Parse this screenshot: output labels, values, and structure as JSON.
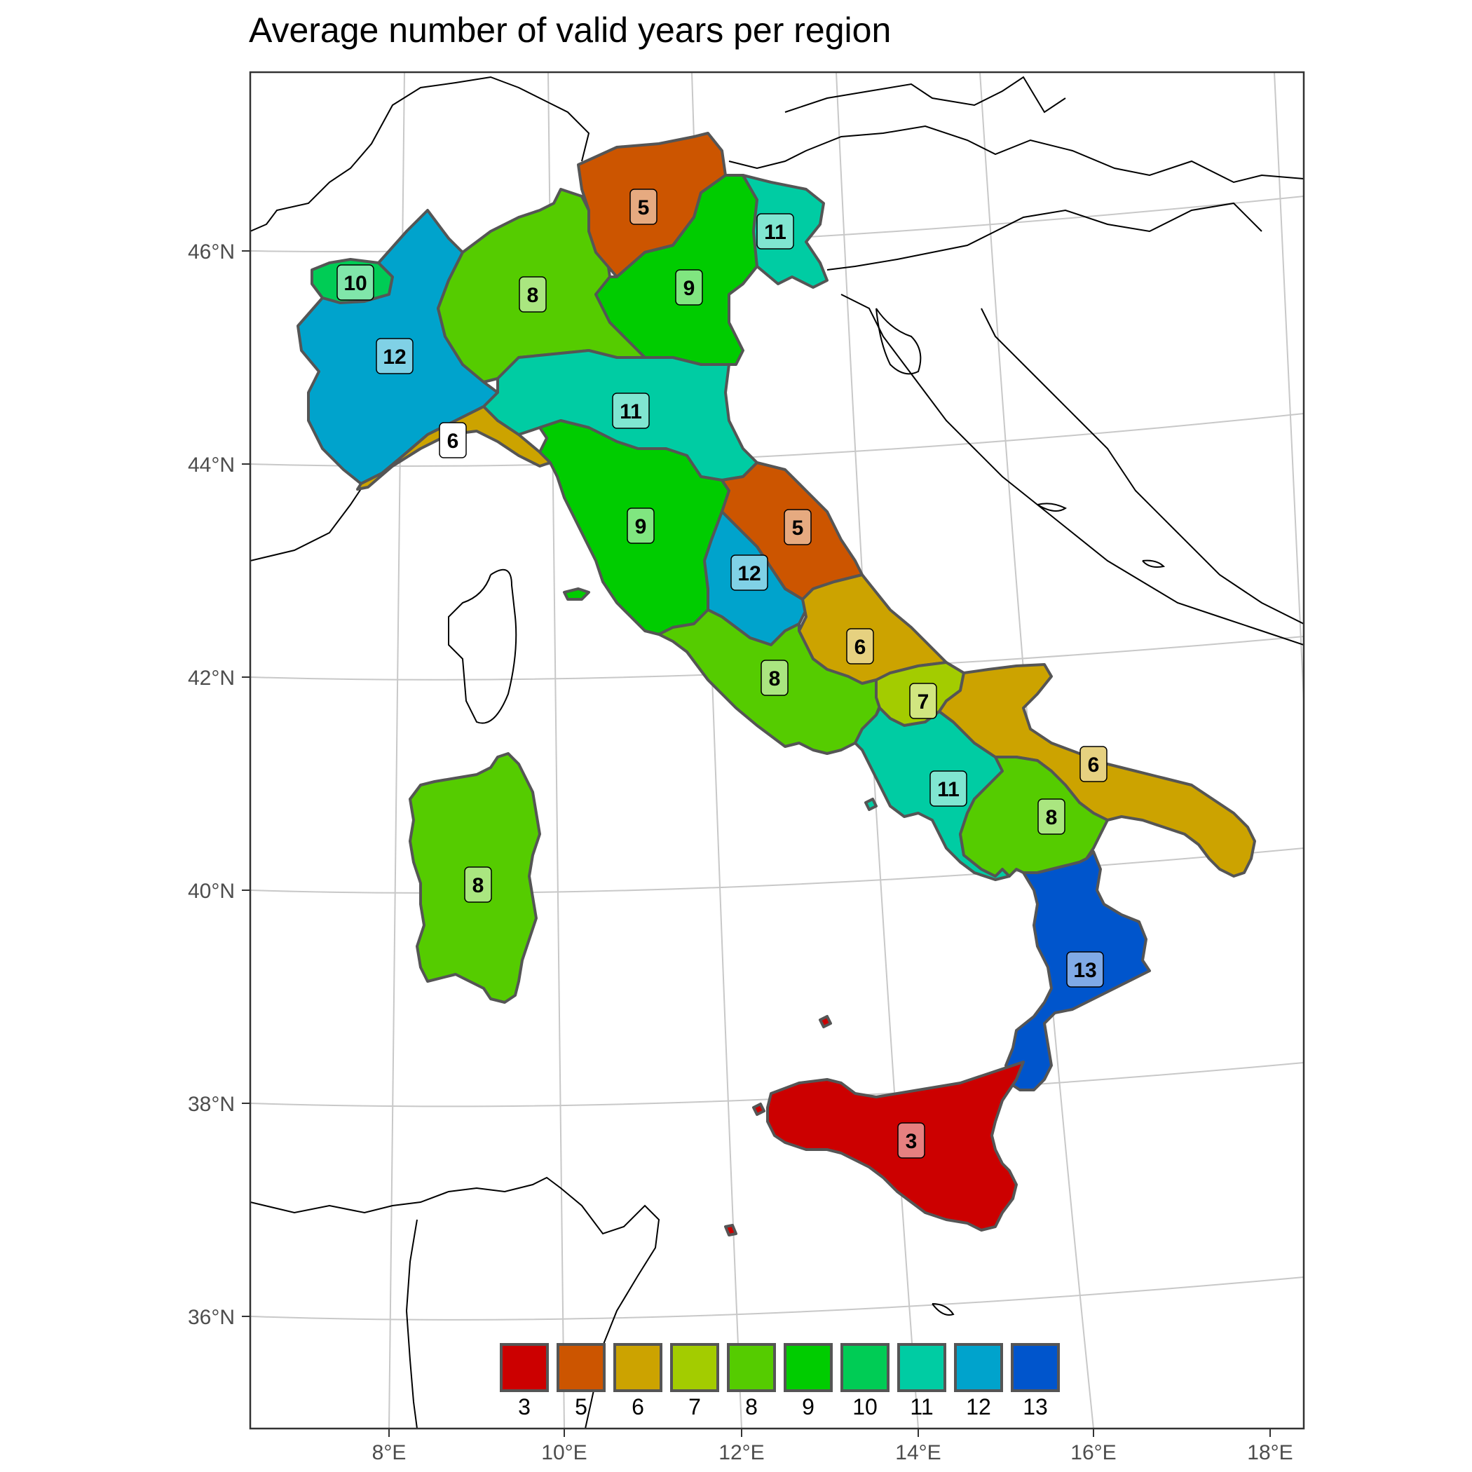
{
  "title": "Average number of valid years per region",
  "axes": {
    "lon_ticks": [
      "8°E",
      "10°E",
      "12°E",
      "14°E",
      "16°E",
      "18°E"
    ],
    "lat_ticks": [
      "46°N",
      "44°N",
      "42°N",
      "40°N",
      "38°N",
      "36°N"
    ]
  },
  "legend": {
    "placement": "bottom-center",
    "items": [
      {
        "label": "3",
        "color": "#cc0000"
      },
      {
        "label": "5",
        "color": "#cc5500"
      },
      {
        "label": "6",
        "color": "#cca300"
      },
      {
        "label": "7",
        "color": "#a3cc00"
      },
      {
        "label": "8",
        "color": "#55cc00"
      },
      {
        "label": "9",
        "color": "#00cc00"
      },
      {
        "label": "10",
        "color": "#00cc55"
      },
      {
        "label": "11",
        "color": "#00cca3"
      },
      {
        "label": "12",
        "color": "#00a3cc"
      },
      {
        "label": "13",
        "color": "#0055cc"
      }
    ]
  },
  "regions": [
    {
      "name": "Valle d'Aosta",
      "value": "10"
    },
    {
      "name": "Piemonte",
      "value": "12"
    },
    {
      "name": "Lombardia",
      "value": "8"
    },
    {
      "name": "Trentino-Alto Adige",
      "value": "5"
    },
    {
      "name": "Veneto",
      "value": "9"
    },
    {
      "name": "Friuli-Venezia Giulia",
      "value": "11"
    },
    {
      "name": "Liguria",
      "value": "6"
    },
    {
      "name": "Emilia-Romagna",
      "value": "11"
    },
    {
      "name": "Toscana",
      "value": "9"
    },
    {
      "name": "Marche",
      "value": "5"
    },
    {
      "name": "Umbria",
      "value": "12"
    },
    {
      "name": "Abruzzo",
      "value": "6"
    },
    {
      "name": "Lazio",
      "value": "8"
    },
    {
      "name": "Molise",
      "value": "7"
    },
    {
      "name": "Campania",
      "value": "11"
    },
    {
      "name": "Puglia",
      "value": "6"
    },
    {
      "name": "Basilicata",
      "value": "8"
    },
    {
      "name": "Calabria",
      "value": "13"
    },
    {
      "name": "Sicilia",
      "value": "3"
    },
    {
      "name": "Sardegna",
      "value": "8"
    }
  ],
  "colors": {
    "region_border": "#555555",
    "graticule": "#c8c8c8",
    "coastline": "#000000",
    "panel_border": "#333333"
  }
}
